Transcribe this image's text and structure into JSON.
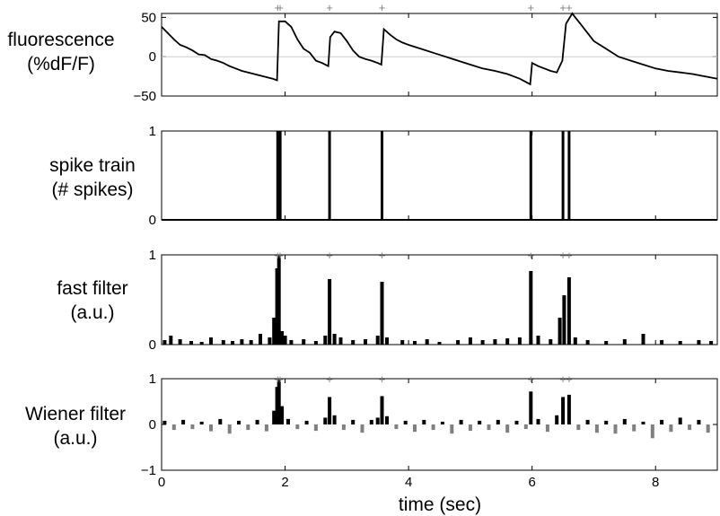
{
  "figure": {
    "xlabel": "time (sec)",
    "x_range": [
      0,
      9
    ],
    "x_ticks": [
      "0",
      "2",
      "4",
      "6",
      "8"
    ],
    "spike_times": [
      1.88,
      1.92,
      2.72,
      3.57,
      5.98,
      6.5,
      6.6
    ],
    "plus_marker": "+",
    "colors": {
      "line": "#000000",
      "negative_bars": "#808080",
      "markers": "#808080",
      "zero_line": "#cccccc"
    }
  },
  "chart_data": [
    {
      "type": "line",
      "label_lines": [
        "fluorescence",
        "(%dF/F)"
      ],
      "ylim": [
        -50,
        55
      ],
      "y_ticks": [
        "50",
        "0",
        "−50"
      ],
      "zero_line": true,
      "x": [
        0,
        0.1,
        0.2,
        0.3,
        0.4,
        0.5,
        0.6,
        0.7,
        0.8,
        0.9,
        1.0,
        1.1,
        1.2,
        1.3,
        1.4,
        1.5,
        1.6,
        1.7,
        1.8,
        1.87,
        1.9,
        2.0,
        2.1,
        2.2,
        2.3,
        2.4,
        2.5,
        2.6,
        2.7,
        2.73,
        2.8,
        2.9,
        3.0,
        3.1,
        3.2,
        3.3,
        3.4,
        3.5,
        3.56,
        3.6,
        3.7,
        3.8,
        3.9,
        4.0,
        4.2,
        4.4,
        4.6,
        4.8,
        5.0,
        5.2,
        5.4,
        5.6,
        5.8,
        5.97,
        6.0,
        6.1,
        6.2,
        6.3,
        6.4,
        6.49,
        6.55,
        6.65,
        6.7,
        6.8,
        6.9,
        7.0,
        7.2,
        7.4,
        7.6,
        7.8,
        8.0,
        8.2,
        8.4,
        8.6,
        8.8,
        9.0
      ],
      "y": [
        38,
        30,
        22,
        15,
        12,
        8,
        3,
        2,
        -3,
        -5,
        -8,
        -12,
        -15,
        -18,
        -20,
        -22,
        -24,
        -26,
        -28,
        -30,
        45,
        45,
        38,
        22,
        10,
        5,
        -5,
        -8,
        -12,
        25,
        32,
        30,
        20,
        8,
        0,
        -3,
        -5,
        -8,
        -10,
        35,
        28,
        22,
        18,
        15,
        10,
        5,
        0,
        -5,
        -10,
        -15,
        -18,
        -22,
        -28,
        -35,
        -8,
        -12,
        -15,
        -18,
        -20,
        -5,
        42,
        55,
        50,
        40,
        30,
        20,
        10,
        0,
        -5,
        -10,
        -15,
        -18,
        -20,
        -22,
        -25,
        -28
      ]
    },
    {
      "type": "bar",
      "label_lines": [
        "spike train",
        "(# spikes)"
      ],
      "ylim": [
        0,
        1
      ],
      "y_ticks": [
        "1",
        "0"
      ],
      "x": [
        1.88,
        1.92,
        2.72,
        3.57,
        5.98,
        6.5,
        6.6
      ],
      "values": [
        1,
        1,
        1,
        1,
        1,
        1,
        1
      ]
    },
    {
      "type": "bar",
      "label_lines": [
        "fast filter",
        "(a.u.)"
      ],
      "ylim": [
        0,
        1
      ],
      "y_ticks": [
        "1",
        "0"
      ],
      "x": [
        0.05,
        0.15,
        0.3,
        0.48,
        0.65,
        0.8,
        1.0,
        1.15,
        1.3,
        1.45,
        1.6,
        1.75,
        1.82,
        1.87,
        1.9,
        1.95,
        2.0,
        2.1,
        2.3,
        2.5,
        2.65,
        2.72,
        2.8,
        2.9,
        3.1,
        3.3,
        3.5,
        3.57,
        3.65,
        3.9,
        4.1,
        4.3,
        4.5,
        4.8,
        5.0,
        5.2,
        5.4,
        5.6,
        5.8,
        5.98,
        6.1,
        6.3,
        6.45,
        6.52,
        6.6,
        6.7,
        6.9,
        7.2,
        7.5,
        7.8,
        8.1,
        8.4,
        8.7,
        8.9
      ],
      "values": [
        0.05,
        0.1,
        0.06,
        0.04,
        0.03,
        0.08,
        0.05,
        0.04,
        0.06,
        0.05,
        0.12,
        0.08,
        0.3,
        0.85,
        1.0,
        0.15,
        0.1,
        0.05,
        0.06,
        0.04,
        0.1,
        0.73,
        0.12,
        0.08,
        0.05,
        0.06,
        0.1,
        0.7,
        0.08,
        0.05,
        0.04,
        0.06,
        0.03,
        0.05,
        0.08,
        0.05,
        0.06,
        0.07,
        0.08,
        0.82,
        0.1,
        0.06,
        0.3,
        0.55,
        0.75,
        0.08,
        0.05,
        0.04,
        0.06,
        0.12,
        0.05,
        0.04,
        0.05,
        0.04
      ]
    },
    {
      "type": "bar",
      "label_lines": [
        "Wiener filter",
        "(a.u.)"
      ],
      "ylim": [
        -1,
        1
      ],
      "y_ticks": [
        "1",
        "0",
        "−1"
      ],
      "x": [
        0.05,
        0.2,
        0.35,
        0.5,
        0.65,
        0.8,
        0.95,
        1.1,
        1.25,
        1.4,
        1.55,
        1.7,
        1.82,
        1.87,
        1.9,
        1.95,
        2.05,
        2.2,
        2.35,
        2.5,
        2.65,
        2.72,
        2.8,
        2.95,
        3.1,
        3.25,
        3.4,
        3.5,
        3.57,
        3.65,
        3.8,
        3.95,
        4.1,
        4.25,
        4.4,
        4.55,
        4.7,
        4.85,
        5.0,
        5.15,
        5.3,
        5.45,
        5.6,
        5.75,
        5.9,
        5.98,
        6.1,
        6.25,
        6.4,
        6.5,
        6.6,
        6.75,
        6.9,
        7.05,
        7.2,
        7.35,
        7.5,
        7.65,
        7.8,
        7.95,
        8.1,
        8.25,
        8.4,
        8.55,
        8.7,
        8.85
      ],
      "values": [
        0.08,
        -0.12,
        0.1,
        -0.1,
        0.06,
        -0.15,
        0.12,
        -0.2,
        0.08,
        -0.12,
        0.1,
        -0.15,
        0.3,
        0.82,
        1.0,
        0.4,
        0.12,
        -0.1,
        0.08,
        -0.14,
        0.15,
        0.6,
        0.2,
        -0.12,
        0.1,
        -0.18,
        0.1,
        0.15,
        0.62,
        0.18,
        -0.1,
        0.08,
        -0.16,
        0.1,
        -0.12,
        0.06,
        -0.2,
        0.1,
        -0.14,
        0.08,
        -0.12,
        0.1,
        -0.18,
        0.08,
        -0.1,
        0.72,
        0.12,
        -0.16,
        0.2,
        0.6,
        0.65,
        -0.12,
        0.1,
        -0.18,
        0.08,
        -0.2,
        0.12,
        -0.15,
        0.06,
        -0.3,
        0.1,
        -0.16,
        0.15,
        -0.12,
        0.1,
        -0.18
      ]
    }
  ]
}
